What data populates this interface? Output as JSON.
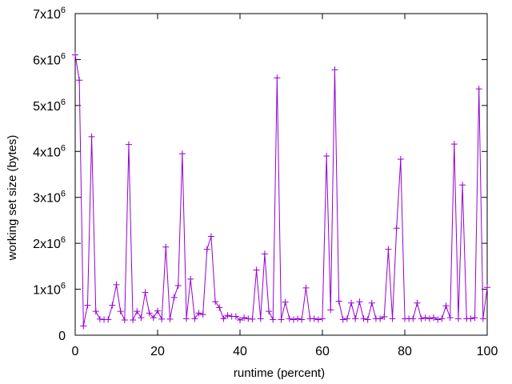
{
  "chart_data": {
    "type": "line",
    "xlabel": "runtime (percent)",
    "ylabel": "working set size (bytes)",
    "xlim": [
      0,
      100
    ],
    "ylim": [
      0,
      7000000
    ],
    "xticks": [
      0,
      20,
      40,
      60,
      80,
      100
    ],
    "yticks": [
      {
        "value": 0,
        "label": "0",
        "exp": ""
      },
      {
        "value": 1000000,
        "label": "1x10",
        "exp": "6"
      },
      {
        "value": 2000000,
        "label": "2x10",
        "exp": "6"
      },
      {
        "value": 3000000,
        "label": "3x10",
        "exp": "6"
      },
      {
        "value": 4000000,
        "label": "4x10",
        "exp": "6"
      },
      {
        "value": 5000000,
        "label": "5x10",
        "exp": "6"
      },
      {
        "value": 6000000,
        "label": "6x10",
        "exp": "6"
      },
      {
        "value": 7000000,
        "label": "7x10",
        "exp": "6"
      }
    ],
    "grid": false,
    "series": [
      {
        "color": "#9400d3",
        "marker": "plus",
        "points": [
          [
            0,
            6100000
          ],
          [
            1,
            5550000
          ],
          [
            2,
            200000
          ],
          [
            3,
            650000
          ],
          [
            4,
            4320000
          ],
          [
            5,
            520000
          ],
          [
            6,
            350000
          ],
          [
            7,
            340000
          ],
          [
            8,
            340000
          ],
          [
            9,
            650000
          ],
          [
            10,
            1100000
          ],
          [
            11,
            520000
          ],
          [
            12,
            330000
          ],
          [
            13,
            4150000
          ],
          [
            14,
            330000
          ],
          [
            15,
            520000
          ],
          [
            16,
            380000
          ],
          [
            17,
            930000
          ],
          [
            18,
            480000
          ],
          [
            19,
            380000
          ],
          [
            20,
            530000
          ],
          [
            21,
            350000
          ],
          [
            22,
            1920000
          ],
          [
            23,
            350000
          ],
          [
            24,
            820000
          ],
          [
            25,
            1080000
          ],
          [
            26,
            3950000
          ],
          [
            27,
            360000
          ],
          [
            28,
            1220000
          ],
          [
            29,
            360000
          ],
          [
            30,
            480000
          ],
          [
            31,
            450000
          ],
          [
            32,
            1870000
          ],
          [
            33,
            2150000
          ],
          [
            34,
            730000
          ],
          [
            35,
            600000
          ],
          [
            36,
            360000
          ],
          [
            37,
            430000
          ],
          [
            38,
            410000
          ],
          [
            39,
            410000
          ],
          [
            40,
            330000
          ],
          [
            41,
            380000
          ],
          [
            42,
            360000
          ],
          [
            43,
            350000
          ],
          [
            44,
            1420000
          ],
          [
            45,
            360000
          ],
          [
            46,
            1770000
          ],
          [
            47,
            520000
          ],
          [
            48,
            340000
          ],
          [
            49,
            5600000
          ],
          [
            50,
            340000
          ],
          [
            51,
            720000
          ],
          [
            52,
            360000
          ],
          [
            53,
            340000
          ],
          [
            54,
            360000
          ],
          [
            55,
            340000
          ],
          [
            56,
            1030000
          ],
          [
            57,
            360000
          ],
          [
            58,
            360000
          ],
          [
            59,
            340000
          ],
          [
            60,
            360000
          ],
          [
            61,
            3900000
          ],
          [
            62,
            550000
          ],
          [
            63,
            5780000
          ],
          [
            64,
            740000
          ],
          [
            65,
            340000
          ],
          [
            66,
            360000
          ],
          [
            67,
            700000
          ],
          [
            68,
            360000
          ],
          [
            69,
            730000
          ],
          [
            70,
            360000
          ],
          [
            71,
            340000
          ],
          [
            72,
            700000
          ],
          [
            73,
            360000
          ],
          [
            74,
            360000
          ],
          [
            75,
            400000
          ],
          [
            76,
            1870000
          ],
          [
            77,
            360000
          ],
          [
            78,
            2330000
          ],
          [
            79,
            3830000
          ],
          [
            80,
            360000
          ],
          [
            81,
            360000
          ],
          [
            82,
            360000
          ],
          [
            83,
            700000
          ],
          [
            84,
            360000
          ],
          [
            85,
            380000
          ],
          [
            86,
            360000
          ],
          [
            87,
            380000
          ],
          [
            88,
            340000
          ],
          [
            89,
            360000
          ],
          [
            90,
            640000
          ],
          [
            91,
            380000
          ],
          [
            92,
            4160000
          ],
          [
            93,
            360000
          ],
          [
            94,
            3270000
          ],
          [
            95,
            360000
          ],
          [
            96,
            360000
          ],
          [
            97,
            380000
          ],
          [
            98,
            5360000
          ],
          [
            99,
            360000
          ],
          [
            100,
            1040000
          ]
        ]
      }
    ]
  }
}
